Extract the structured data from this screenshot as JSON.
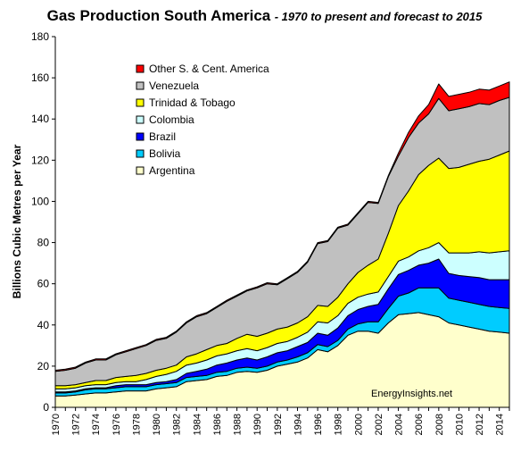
{
  "chart_data": {
    "type": "area",
    "stacked": true,
    "title": "Gas Production South America",
    "subtitle": "- 1970 to present and forecast to 2015",
    "xlabel": "",
    "ylabel": "Billions Cubic Metres per Year",
    "ylim": [
      0,
      180
    ],
    "yticks": [
      0,
      20,
      40,
      60,
      80,
      100,
      120,
      140,
      160,
      180
    ],
    "xlim": [
      1970,
      2015
    ],
    "xticks": [
      1970,
      1972,
      1974,
      1976,
      1978,
      1980,
      1982,
      1984,
      1986,
      1988,
      1990,
      1992,
      1994,
      1996,
      1998,
      2000,
      2002,
      2004,
      2006,
      2008,
      2010,
      2012,
      2014
    ],
    "grid": false,
    "legend_position": "top-left",
    "watermark": "EnergyInsights.net",
    "x": [
      1970,
      1971,
      1972,
      1973,
      1974,
      1975,
      1976,
      1977,
      1978,
      1979,
      1980,
      1981,
      1982,
      1983,
      1984,
      1985,
      1986,
      1987,
      1988,
      1989,
      1990,
      1991,
      1992,
      1993,
      1994,
      1995,
      1996,
      1997,
      1998,
      1999,
      2000,
      2001,
      2002,
      2003,
      2004,
      2005,
      2006,
      2007,
      2008,
      2009,
      2010,
      2011,
      2012,
      2013,
      2014,
      2015
    ],
    "series": [
      {
        "name": "Argentina",
        "color": "#ffffcc",
        "values": [
          5.5,
          5.5,
          6.0,
          6.5,
          7.0,
          7.0,
          7.5,
          8.0,
          8.0,
          8.0,
          9.0,
          9.5,
          10.0,
          12.5,
          13.0,
          13.5,
          15.0,
          15.5,
          17.0,
          17.5,
          17.0,
          18.0,
          20.0,
          21.0,
          22.0,
          24.0,
          28.0,
          27.0,
          30.0,
          35.0,
          37.0,
          37.0,
          36.0,
          41.0,
          45.0,
          45.5,
          46.0,
          45.0,
          44.0,
          41.0,
          40.0,
          39.0,
          38.0,
          37.0,
          36.5,
          36.0
        ]
      },
      {
        "name": "Bolivia",
        "color": "#00ccff",
        "values": [
          1.5,
          1.5,
          1.5,
          2.0,
          2.0,
          2.0,
          2.0,
          2.0,
          2.0,
          2.0,
          2.0,
          2.0,
          2.0,
          2.0,
          2.0,
          2.0,
          2.0,
          2.0,
          2.0,
          2.0,
          2.0,
          2.0,
          2.0,
          2.0,
          2.5,
          2.5,
          2.5,
          2.5,
          2.5,
          3.0,
          3.5,
          4.5,
          5.5,
          7.0,
          9.0,
          10.0,
          12.0,
          13.0,
          14.0,
          12.0,
          12.0,
          12.0,
          12.0,
          12.0,
          12.0,
          12.0
        ]
      },
      {
        "name": "Brazil",
        "color": "#0000ff",
        "values": [
          0.5,
          0.5,
          0.5,
          0.5,
          0.5,
          0.5,
          1.0,
          1.0,
          1.0,
          1.0,
          1.0,
          1.0,
          1.5,
          2.0,
          2.5,
          3.0,
          3.5,
          4.0,
          4.0,
          4.5,
          4.0,
          4.5,
          4.5,
          4.5,
          5.0,
          5.0,
          5.5,
          5.5,
          6.0,
          6.5,
          7.0,
          7.5,
          8.5,
          9.5,
          10.5,
          11.0,
          11.0,
          12.0,
          14.0,
          12.0,
          12.0,
          12.5,
          13.0,
          13.0,
          13.5,
          14.0
        ]
      },
      {
        "name": "Colombia",
        "color": "#ccffff",
        "values": [
          1.5,
          1.5,
          1.5,
          1.5,
          1.5,
          1.5,
          1.5,
          1.5,
          1.5,
          2.5,
          3.0,
          3.5,
          4.0,
          4.0,
          4.0,
          4.5,
          4.5,
          4.5,
          4.5,
          4.5,
          4.5,
          4.5,
          4.5,
          4.5,
          4.5,
          5.0,
          5.5,
          6.0,
          6.0,
          6.0,
          6.0,
          6.0,
          6.0,
          6.0,
          6.5,
          6.5,
          7.0,
          7.5,
          8.0,
          10.0,
          11.0,
          11.5,
          12.5,
          13.0,
          13.5,
          14.0
        ]
      },
      {
        "name": "Trinidad & Tobago",
        "color": "#ffff00",
        "values": [
          1.5,
          1.5,
          1.5,
          1.5,
          2.0,
          2.0,
          2.5,
          2.5,
          3.0,
          3.0,
          3.0,
          3.0,
          3.0,
          4.0,
          4.5,
          5.0,
          5.0,
          5.0,
          6.0,
          7.0,
          7.0,
          7.0,
          7.0,
          7.0,
          7.0,
          7.5,
          8.0,
          8.0,
          9.0,
          9.5,
          12.0,
          14.0,
          16.0,
          21.0,
          27.0,
          32.0,
          37.0,
          40.0,
          41.0,
          41.0,
          41.5,
          43.0,
          44.0,
          45.5,
          47.0,
          48.5
        ]
      },
      {
        "name": "Venezuela",
        "color": "#c0c0c0",
        "values": [
          7.0,
          7.5,
          8.0,
          9.5,
          10.0,
          10.0,
          11.0,
          12.0,
          13.0,
          13.5,
          14.5,
          14.5,
          16.0,
          16.5,
          18.0,
          17.5,
          18.5,
          20.5,
          20.5,
          21.0,
          23.5,
          24.0,
          21.5,
          23.5,
          24.5,
          26.5,
          30.0,
          31.5,
          33.5,
          28.5,
          28.5,
          30.5,
          27.0,
          27.5,
          24.0,
          26.0,
          25.0,
          25.0,
          29.0,
          28.0,
          28.5,
          28.0,
          28.0,
          26.5,
          26.5,
          26.0
        ]
      },
      {
        "name": "Other S. & Cent. America",
        "color": "#ff0000",
        "values": [
          0.5,
          0.5,
          0.5,
          0.5,
          0.5,
          0.5,
          0.5,
          0.5,
          0.5,
          0.5,
          0.5,
          0.5,
          0.5,
          0.5,
          0.5,
          0.5,
          0.5,
          0.5,
          0.5,
          0.5,
          0.5,
          0.5,
          0.5,
          0.5,
          0.5,
          0.5,
          0.5,
          0.5,
          0.5,
          0.5,
          0.5,
          0.5,
          0.5,
          0.5,
          1.5,
          2.5,
          3.5,
          4.5,
          7.0,
          7.0,
          7.0,
          7.0,
          7.0,
          7.0,
          7.0,
          7.5
        ]
      }
    ]
  }
}
